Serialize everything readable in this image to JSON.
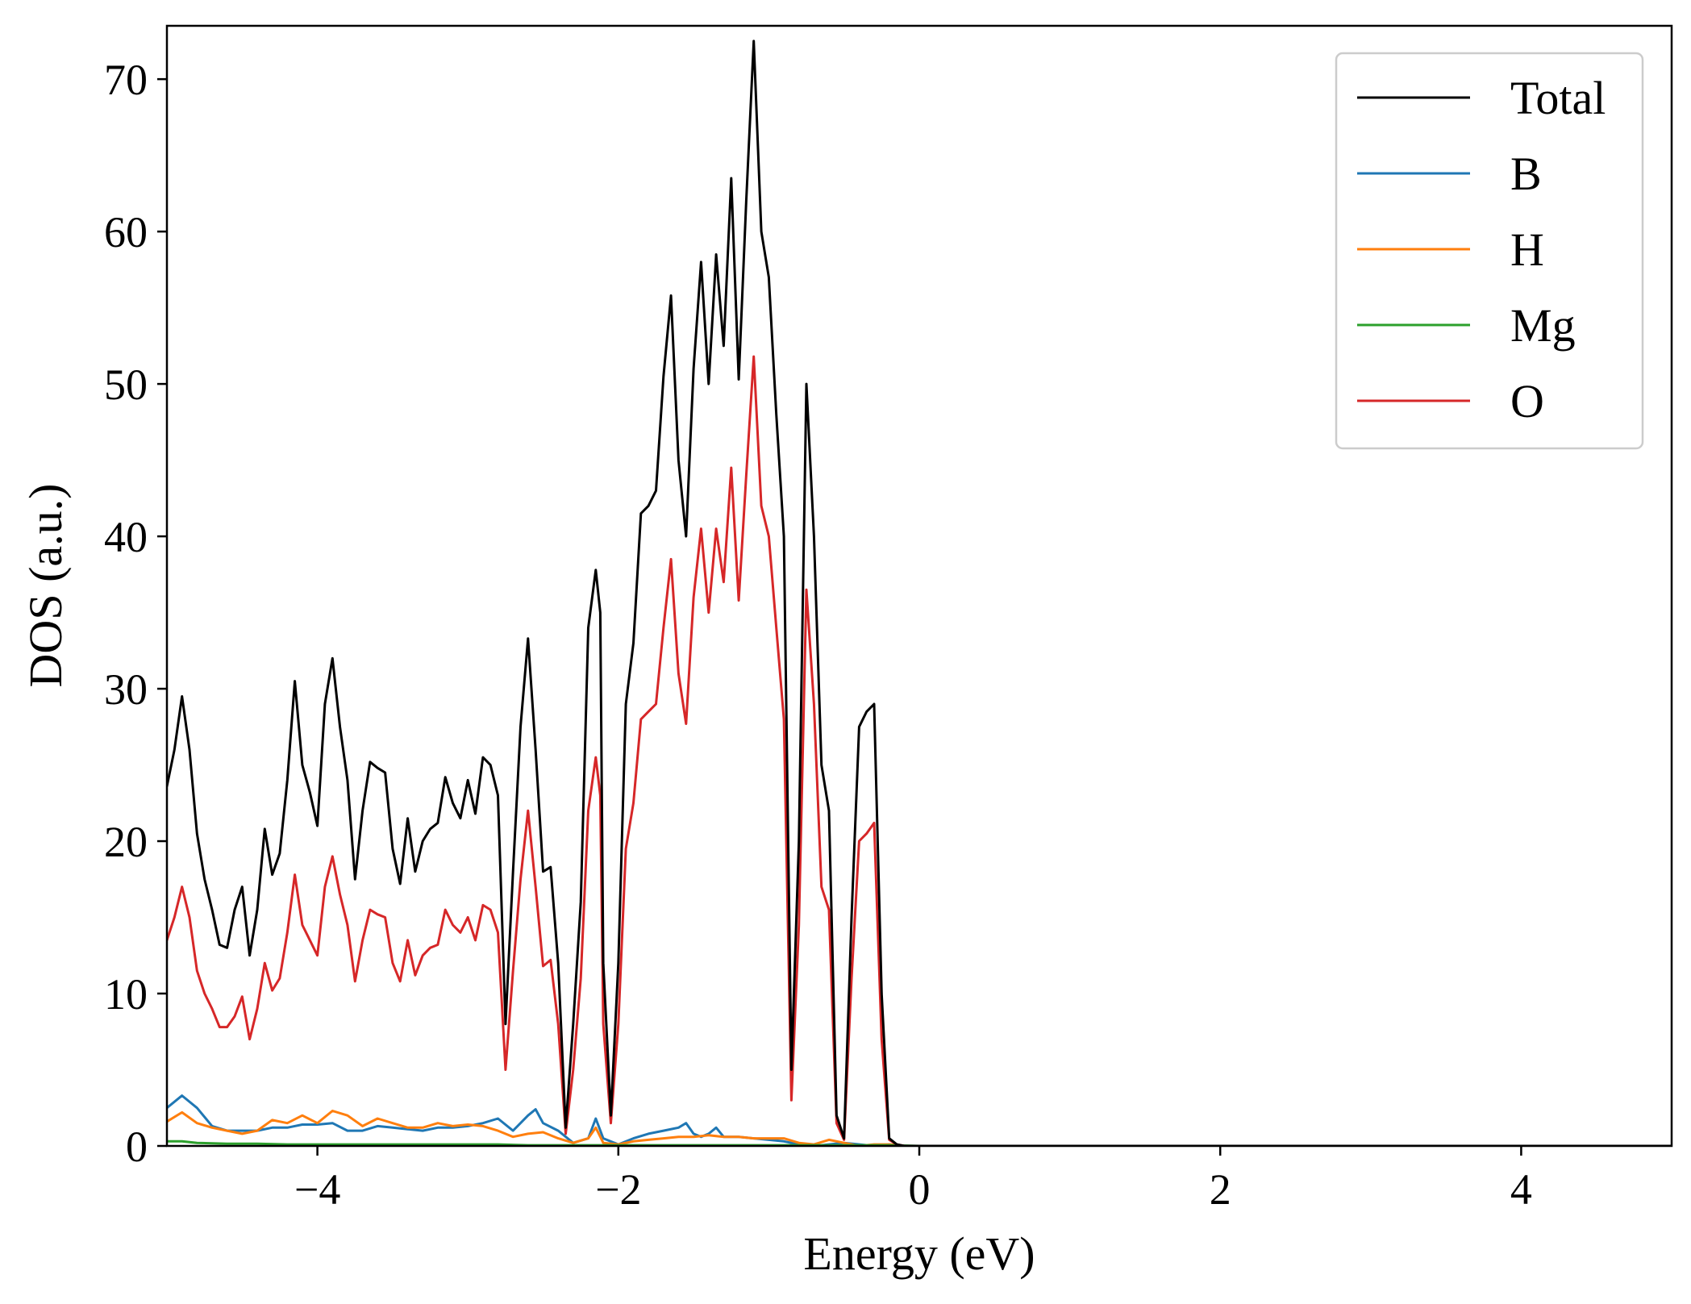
{
  "chart_data": {
    "type": "line",
    "title": "",
    "xlabel": "Energy (eV)",
    "ylabel": "DOS (a.u.)",
    "xlim": [
      -5,
      5
    ],
    "ylim": [
      0,
      73.5
    ],
    "x_ticks": [
      -4,
      -2,
      0,
      2,
      4
    ],
    "x_tick_labels": [
      "−4",
      "−2",
      "0",
      "2",
      "4"
    ],
    "y_ticks": [
      0,
      10,
      20,
      30,
      40,
      50,
      60,
      70
    ],
    "y_tick_labels": [
      "0",
      "10",
      "20",
      "30",
      "40",
      "50",
      "60",
      "70"
    ],
    "grid": false,
    "legend_position": "top-right",
    "series": [
      {
        "name": "Total",
        "color": "#000000",
        "x": [
          -5.0,
          -4.95,
          -4.9,
          -4.85,
          -4.8,
          -4.75,
          -4.7,
          -4.65,
          -4.6,
          -4.55,
          -4.5,
          -4.45,
          -4.4,
          -4.35,
          -4.3,
          -4.25,
          -4.2,
          -4.15,
          -4.1,
          -4.05,
          -4.0,
          -3.95,
          -3.9,
          -3.85,
          -3.8,
          -3.75,
          -3.7,
          -3.65,
          -3.6,
          -3.55,
          -3.5,
          -3.45,
          -3.4,
          -3.35,
          -3.3,
          -3.25,
          -3.2,
          -3.15,
          -3.1,
          -3.05,
          -3.0,
          -2.95,
          -2.9,
          -2.85,
          -2.8,
          -2.75,
          -2.7,
          -2.65,
          -2.6,
          -2.55,
          -2.5,
          -2.45,
          -2.4,
          -2.35,
          -2.3,
          -2.25,
          -2.2,
          -2.15,
          -2.12,
          -2.1,
          -2.05,
          -2.0,
          -1.95,
          -1.9,
          -1.85,
          -1.8,
          -1.75,
          -1.7,
          -1.65,
          -1.6,
          -1.55,
          -1.5,
          -1.45,
          -1.4,
          -1.35,
          -1.3,
          -1.25,
          -1.2,
          -1.15,
          -1.1,
          -1.05,
          -1.0,
          -0.95,
          -0.9,
          -0.85,
          -0.8,
          -0.75,
          -0.7,
          -0.65,
          -0.6,
          -0.55,
          -0.5,
          -0.45,
          -0.4,
          -0.35,
          -0.3,
          -0.25,
          -0.2,
          -0.15,
          -0.1,
          0.0,
          5.0
        ],
        "values": [
          23.6,
          26.0,
          29.5,
          26.0,
          20.5,
          17.5,
          15.5,
          13.2,
          13.0,
          15.5,
          17.0,
          12.5,
          15.5,
          20.8,
          17.8,
          19.2,
          24.0,
          30.5,
          25.0,
          23.2,
          21.0,
          29.0,
          32.0,
          27.5,
          24.0,
          17.5,
          22.0,
          25.2,
          24.8,
          24.5,
          19.5,
          17.2,
          21.5,
          18.0,
          20.0,
          20.8,
          21.2,
          24.2,
          22.5,
          21.5,
          24.0,
          21.8,
          25.5,
          25.0,
          23.0,
          8.0,
          18.0,
          27.5,
          33.3,
          26.0,
          18.0,
          18.3,
          12.0,
          1.2,
          8.0,
          16.0,
          34.0,
          37.8,
          35.0,
          12.0,
          2.0,
          12.0,
          29.0,
          33.0,
          41.5,
          42.0,
          43.0,
          50.5,
          55.8,
          45.0,
          40.0,
          51.0,
          58.0,
          50.0,
          58.5,
          52.5,
          63.5,
          50.3,
          62.0,
          72.5,
          60.0,
          57.0,
          48.0,
          40.0,
          5.0,
          20.0,
          50.0,
          40.0,
          25.0,
          22.0,
          2.0,
          0.5,
          15.0,
          27.5,
          28.5,
          29.0,
          10.0,
          0.5,
          0.1,
          0.0,
          0.0,
          0.0
        ]
      },
      {
        "name": "B",
        "color": "#1f77b4",
        "x": [
          -5.0,
          -4.9,
          -4.8,
          -4.7,
          -4.6,
          -4.5,
          -4.4,
          -4.3,
          -4.2,
          -4.1,
          -4.0,
          -3.9,
          -3.8,
          -3.7,
          -3.6,
          -3.5,
          -3.4,
          -3.3,
          -3.2,
          -3.1,
          -3.0,
          -2.9,
          -2.8,
          -2.7,
          -2.6,
          -2.55,
          -2.5,
          -2.4,
          -2.3,
          -2.2,
          -2.15,
          -2.1,
          -2.0,
          -1.9,
          -1.8,
          -1.7,
          -1.6,
          -1.55,
          -1.5,
          -1.45,
          -1.4,
          -1.35,
          -1.3,
          -1.2,
          -1.1,
          -1.0,
          -0.9,
          -0.8,
          -0.7,
          -0.6,
          -0.5,
          -0.4,
          -0.3,
          -0.2,
          -0.1,
          0.0,
          5.0
        ],
        "values": [
          2.5,
          3.3,
          2.5,
          1.3,
          1.0,
          1.0,
          1.0,
          1.2,
          1.2,
          1.4,
          1.4,
          1.5,
          1.0,
          1.0,
          1.3,
          1.2,
          1.1,
          1.0,
          1.2,
          1.2,
          1.3,
          1.5,
          1.8,
          1.0,
          2.0,
          2.4,
          1.5,
          1.0,
          0.2,
          0.5,
          1.8,
          0.5,
          0.1,
          0.5,
          0.8,
          1.0,
          1.2,
          1.5,
          0.8,
          0.6,
          0.8,
          1.2,
          0.6,
          0.6,
          0.5,
          0.4,
          0.3,
          0.1,
          0.0,
          0.1,
          0.2,
          0.1,
          0.0,
          0.1,
          0.0,
          0.0,
          0.0
        ]
      },
      {
        "name": "H",
        "color": "#ff7f0e",
        "x": [
          -5.0,
          -4.9,
          -4.8,
          -4.7,
          -4.6,
          -4.5,
          -4.4,
          -4.3,
          -4.2,
          -4.1,
          -4.0,
          -3.9,
          -3.8,
          -3.7,
          -3.6,
          -3.5,
          -3.4,
          -3.3,
          -3.2,
          -3.1,
          -3.0,
          -2.9,
          -2.8,
          -2.7,
          -2.6,
          -2.5,
          -2.4,
          -2.3,
          -2.2,
          -2.15,
          -2.1,
          -2.0,
          -1.9,
          -1.8,
          -1.7,
          -1.6,
          -1.5,
          -1.4,
          -1.3,
          -1.2,
          -1.1,
          -1.0,
          -0.9,
          -0.8,
          -0.7,
          -0.6,
          -0.5,
          -0.4,
          -0.3,
          -0.2,
          -0.1,
          0.0,
          5.0
        ],
        "values": [
          1.6,
          2.2,
          1.5,
          1.2,
          1.0,
          0.8,
          1.0,
          1.7,
          1.5,
          2.0,
          1.5,
          2.3,
          2.0,
          1.3,
          1.8,
          1.5,
          1.2,
          1.2,
          1.5,
          1.3,
          1.4,
          1.3,
          1.0,
          0.6,
          0.8,
          0.9,
          0.5,
          0.2,
          0.5,
          1.2,
          0.2,
          0.1,
          0.3,
          0.4,
          0.5,
          0.6,
          0.6,
          0.7,
          0.6,
          0.6,
          0.5,
          0.5,
          0.5,
          0.2,
          0.1,
          0.4,
          0.2,
          0.0,
          0.1,
          0.1,
          0.0,
          0.0,
          0.0
        ]
      },
      {
        "name": "Mg",
        "color": "#2ca02c",
        "x": [
          -5.0,
          -4.9,
          -4.8,
          -4.6,
          -4.4,
          -4.2,
          -4.0,
          -3.8,
          -3.6,
          -3.4,
          -3.2,
          -3.0,
          -2.8,
          -2.6,
          -2.4,
          -2.2,
          -2.0,
          -1.8,
          -1.6,
          -1.4,
          -1.2,
          -1.0,
          -0.8,
          -0.6,
          -0.4,
          -0.2,
          0.0,
          5.0
        ],
        "values": [
          0.3,
          0.3,
          0.2,
          0.15,
          0.15,
          0.1,
          0.1,
          0.1,
          0.1,
          0.1,
          0.1,
          0.1,
          0.1,
          0.05,
          0.05,
          0.05,
          0.05,
          0.05,
          0.05,
          0.05,
          0.05,
          0.05,
          0.05,
          0.05,
          0.05,
          0.05,
          0.0,
          0.0
        ]
      },
      {
        "name": "O",
        "color": "#d62728",
        "x": [
          -5.0,
          -4.95,
          -4.9,
          -4.85,
          -4.8,
          -4.75,
          -4.7,
          -4.65,
          -4.6,
          -4.55,
          -4.5,
          -4.45,
          -4.4,
          -4.35,
          -4.3,
          -4.25,
          -4.2,
          -4.15,
          -4.1,
          -4.05,
          -4.0,
          -3.95,
          -3.9,
          -3.85,
          -3.8,
          -3.75,
          -3.7,
          -3.65,
          -3.6,
          -3.55,
          -3.5,
          -3.45,
          -3.4,
          -3.35,
          -3.3,
          -3.25,
          -3.2,
          -3.15,
          -3.1,
          -3.05,
          -3.0,
          -2.95,
          -2.9,
          -2.85,
          -2.8,
          -2.75,
          -2.7,
          -2.65,
          -2.6,
          -2.55,
          -2.5,
          -2.45,
          -2.4,
          -2.35,
          -2.3,
          -2.25,
          -2.2,
          -2.15,
          -2.12,
          -2.1,
          -2.05,
          -2.0,
          -1.95,
          -1.9,
          -1.85,
          -1.8,
          -1.75,
          -1.7,
          -1.65,
          -1.6,
          -1.55,
          -1.5,
          -1.45,
          -1.4,
          -1.35,
          -1.3,
          -1.25,
          -1.2,
          -1.15,
          -1.1,
          -1.05,
          -1.0,
          -0.95,
          -0.9,
          -0.85,
          -0.8,
          -0.75,
          -0.7,
          -0.65,
          -0.6,
          -0.55,
          -0.5,
          -0.45,
          -0.4,
          -0.35,
          -0.3,
          -0.25,
          -0.2,
          -0.15,
          -0.1,
          0.0,
          5.0
        ],
        "values": [
          13.5,
          15.0,
          17.0,
          15.0,
          11.5,
          10.0,
          9.0,
          7.8,
          7.8,
          8.5,
          9.8,
          7.0,
          9.0,
          12.0,
          10.2,
          11.0,
          14.0,
          17.8,
          14.5,
          13.5,
          12.5,
          17.0,
          19.0,
          16.5,
          14.5,
          10.8,
          13.5,
          15.5,
          15.2,
          15.0,
          12.0,
          10.8,
          13.5,
          11.2,
          12.5,
          13.0,
          13.2,
          15.5,
          14.5,
          14.0,
          15.0,
          13.5,
          15.8,
          15.5,
          14.0,
          5.0,
          11.5,
          17.5,
          22.0,
          17.0,
          11.8,
          12.2,
          8.0,
          0.8,
          5.0,
          11.0,
          22.0,
          25.5,
          23.0,
          8.0,
          1.5,
          8.0,
          19.5,
          22.5,
          28.0,
          28.5,
          29.0,
          34.0,
          38.5,
          31.0,
          27.7,
          36.0,
          40.5,
          35.0,
          40.5,
          37.0,
          44.5,
          35.8,
          44.0,
          51.8,
          42.0,
          40.0,
          34.0,
          28.0,
          3.0,
          14.5,
          36.5,
          29.0,
          17.0,
          15.5,
          1.5,
          0.4,
          11.0,
          20.0,
          20.5,
          21.2,
          7.0,
          0.4,
          0.1,
          0.0,
          0.0,
          0.0
        ]
      }
    ]
  }
}
